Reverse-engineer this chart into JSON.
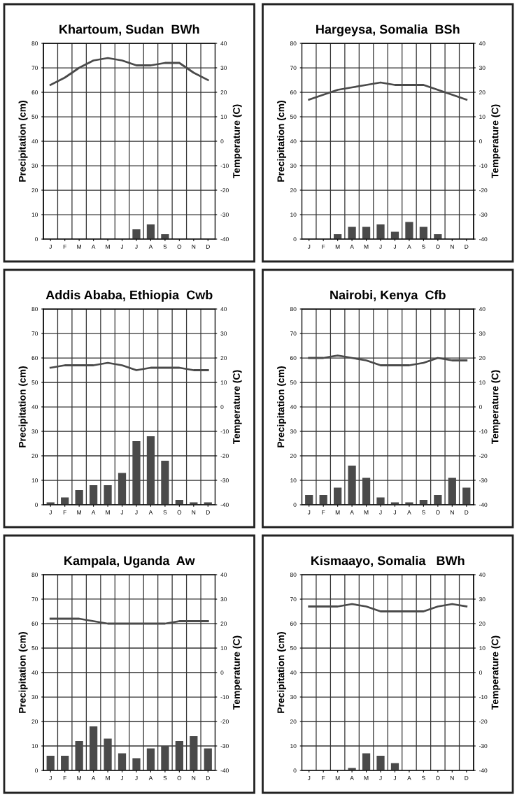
{
  "chart_data": [
    {
      "type": "bar",
      "title": "Khartoum, Sudan  BWh",
      "ylabel": "Precipitation (cm)",
      "y2label": "Temperature (C)",
      "categories": [
        "J",
        "F",
        "M",
        "A",
        "M",
        "J",
        "J",
        "A",
        "S",
        "O",
        "N",
        "D"
      ],
      "ylim": [
        0,
        80
      ],
      "yticks": [
        0,
        10,
        20,
        30,
        40,
        50,
        60,
        70,
        80
      ],
      "y2lim": [
        -40,
        40
      ],
      "y2ticks": [
        -40,
        -30,
        -20,
        -10,
        0,
        10,
        20,
        30,
        40
      ],
      "grid": true,
      "series": [
        {
          "color": "#4a4a4a",
          "values": [
            0,
            0,
            0,
            0,
            0,
            0,
            4,
            6,
            2,
            0,
            0,
            0
          ]
        },
        {
          "type": "line",
          "axis": "y2",
          "color": "#4a4a4a",
          "values": [
            23,
            26,
            30,
            33,
            34,
            33,
            31,
            31,
            32,
            32,
            28,
            25
          ]
        }
      ]
    },
    {
      "type": "bar",
      "title": "Hargeysa, Somalia  BSh",
      "ylabel": "Precipitation (cm)",
      "y2label": "Temperature (C)",
      "categories": [
        "J",
        "F",
        "M",
        "A",
        "M",
        "J",
        "J",
        "A",
        "S",
        "O",
        "N",
        "D"
      ],
      "ylim": [
        0,
        80
      ],
      "yticks": [
        0,
        10,
        20,
        30,
        40,
        50,
        60,
        70,
        80
      ],
      "y2lim": [
        -40,
        40
      ],
      "y2ticks": [
        -40,
        -30,
        -20,
        -10,
        0,
        10,
        20,
        30,
        40
      ],
      "grid": true,
      "series": [
        {
          "color": "#4a4a4a",
          "values": [
            0,
            0,
            2,
            5,
            5,
            6,
            3,
            7,
            5,
            2,
            0,
            0
          ]
        },
        {
          "type": "line",
          "axis": "y2",
          "color": "#4a4a4a",
          "values": [
            17,
            19,
            21,
            22,
            23,
            24,
            23,
            23,
            23,
            21,
            19,
            17
          ]
        }
      ]
    },
    {
      "type": "bar",
      "title": "Addis Ababa, Ethiopia  Cwb",
      "ylabel": "Precipitation (cm)",
      "y2label": "Temperature (C)",
      "categories": [
        "J",
        "F",
        "M",
        "A",
        "M",
        "J",
        "J",
        "A",
        "S",
        "O",
        "N",
        "D"
      ],
      "ylim": [
        0,
        80
      ],
      "yticks": [
        0,
        10,
        20,
        30,
        40,
        50,
        60,
        70,
        80
      ],
      "y2lim": [
        -40,
        40
      ],
      "y2ticks": [
        -40,
        -30,
        -20,
        -10,
        0,
        10,
        20,
        30,
        40
      ],
      "grid": true,
      "series": [
        {
          "color": "#4a4a4a",
          "values": [
            1,
            3,
            6,
            8,
            8,
            13,
            26,
            28,
            18,
            2,
            1,
            1
          ]
        },
        {
          "type": "line",
          "axis": "y2",
          "color": "#4a4a4a",
          "values": [
            16,
            17,
            17,
            17,
            18,
            17,
            15,
            16,
            16,
            16,
            15,
            15
          ]
        }
      ]
    },
    {
      "type": "bar",
      "title": "Nairobi, Kenya  Cfb",
      "ylabel": "Precipitation (cm)",
      "y2label": "Temperature (C)",
      "categories": [
        "J",
        "F",
        "M",
        "A",
        "M",
        "J",
        "J",
        "A",
        "S",
        "O",
        "N",
        "D"
      ],
      "ylim": [
        0,
        80
      ],
      "yticks": [
        0,
        10,
        20,
        30,
        40,
        50,
        60,
        70,
        80
      ],
      "y2lim": [
        -40,
        40
      ],
      "y2ticks": [
        -40,
        -30,
        -20,
        -10,
        0,
        10,
        20,
        30,
        40
      ],
      "grid": true,
      "series": [
        {
          "color": "#4a4a4a",
          "values": [
            4,
            4,
            7,
            16,
            11,
            3,
            1,
            1,
            2,
            4,
            11,
            7
          ]
        },
        {
          "type": "line",
          "axis": "y2",
          "color": "#4a4a4a",
          "values": [
            20,
            20,
            21,
            20,
            19,
            17,
            17,
            17,
            18,
            20,
            19,
            19
          ]
        }
      ]
    },
    {
      "type": "bar",
      "title": "Kampala, Uganda  Aw",
      "ylabel": "Precipitation (cm)",
      "y2label": "Temperature (C)",
      "categories": [
        "J",
        "F",
        "M",
        "A",
        "M",
        "J",
        "J",
        "A",
        "S",
        "O",
        "N",
        "D"
      ],
      "ylim": [
        0,
        80
      ],
      "yticks": [
        0,
        10,
        20,
        30,
        40,
        50,
        60,
        70,
        80
      ],
      "y2lim": [
        -40,
        40
      ],
      "y2ticks": [
        -40,
        -30,
        -20,
        -10,
        0,
        10,
        20,
        30,
        40
      ],
      "grid": true,
      "series": [
        {
          "color": "#4a4a4a",
          "values": [
            6,
            6,
            12,
            18,
            13,
            7,
            5,
            9,
            10,
            12,
            14,
            9
          ]
        },
        {
          "type": "line",
          "axis": "y2",
          "color": "#4a4a4a",
          "values": [
            22,
            22,
            22,
            21,
            20,
            20,
            20,
            20,
            20,
            21,
            21,
            21
          ]
        }
      ]
    },
    {
      "type": "bar",
      "title": "Kismaayo, Somalia   BWh",
      "ylabel": "Precipitation (cm)",
      "y2label": "Temperature (C)",
      "categories": [
        "J",
        "F",
        "M",
        "A",
        "M",
        "J",
        "J",
        "A",
        "S",
        "O",
        "N",
        "D"
      ],
      "ylim": [
        0,
        80
      ],
      "yticks": [
        0,
        10,
        20,
        30,
        40,
        50,
        60,
        70,
        80
      ],
      "y2lim": [
        -40,
        40
      ],
      "y2ticks": [
        -40,
        -30,
        -20,
        -10,
        0,
        10,
        20,
        30,
        40
      ],
      "grid": true,
      "series": [
        {
          "color": "#4a4a4a",
          "values": [
            0,
            0,
            0,
            1,
            7,
            6,
            3,
            0,
            0,
            0,
            0,
            0
          ]
        },
        {
          "type": "line",
          "axis": "y2",
          "color": "#4a4a4a",
          "values": [
            27,
            27,
            27,
            28,
            27,
            25,
            25,
            25,
            25,
            27,
            28,
            27
          ]
        }
      ]
    }
  ]
}
